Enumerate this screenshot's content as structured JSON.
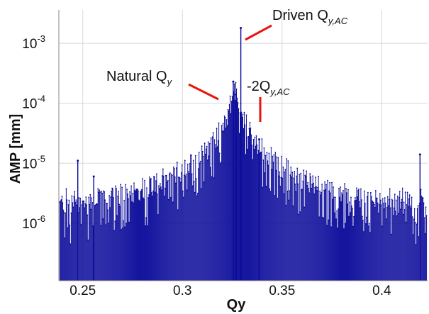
{
  "chart_data": {
    "type": "bar",
    "title": "",
    "xlabel": "Qy",
    "ylabel": "AMP  [mm]",
    "xlim": [
      0.238,
      0.423
    ],
    "ylim": [
      1.1e-07,
      0.0036
    ],
    "yscale": "log",
    "grid": true,
    "color": "#0a0a9a",
    "x_ticks": [
      {
        "value": 0.25,
        "label": "0.25"
      },
      {
        "value": 0.3,
        "label": "0.3"
      },
      {
        "value": 0.35,
        "label": "0.35"
      },
      {
        "value": 0.4,
        "label": "0.4"
      }
    ],
    "y_ticks": [
      {
        "value": 0.001,
        "base": "10",
        "exp": "-3"
      },
      {
        "value": 0.0001,
        "base": "10",
        "exp": "-4"
      },
      {
        "value": 1e-05,
        "base": "10",
        "exp": "-5"
      },
      {
        "value": 1e-06,
        "base": "10",
        "exp": "-6"
      }
    ],
    "series": [
      {
        "values_description": "Dense spectrum of amplitude vs tune; background noise ~1e-6 to 3e-6 mm, broad natural resonance peak near Qy≈0.326, sharp driven line at Qy≈0.329, secondary line near Qy≈0.338, isolated spike near Qy≈0.419",
        "x_start": 0.2385,
        "x_end": 0.4225,
        "n_points": 520,
        "peaks": [
          {
            "x": 0.3293,
            "y": 0.0018
          },
          {
            "x": 0.3255,
            "y": 0.00023
          },
          {
            "x": 0.3268,
            "y": 0.00014
          },
          {
            "x": 0.3385,
            "y": 2.5e-05
          },
          {
            "x": 0.4192,
            "y": 1.4e-05
          },
          {
            "x": 0.2475,
            "y": 1.1e-05
          },
          {
            "x": 0.2555,
            "y": 6e-06
          }
        ],
        "background_level": 1.9e-06
      }
    ],
    "annotations": [
      {
        "id": "driven",
        "text": "Driven Q",
        "sub": "y,AC",
        "prefix": ""
      },
      {
        "id": "natural",
        "text": "Natural Q",
        "sub": "y",
        "prefix": ""
      },
      {
        "id": "harmonic",
        "text": "-2Q",
        "sub": "y,AC",
        "prefix": ""
      }
    ],
    "annotation_color": "#e8130f"
  }
}
